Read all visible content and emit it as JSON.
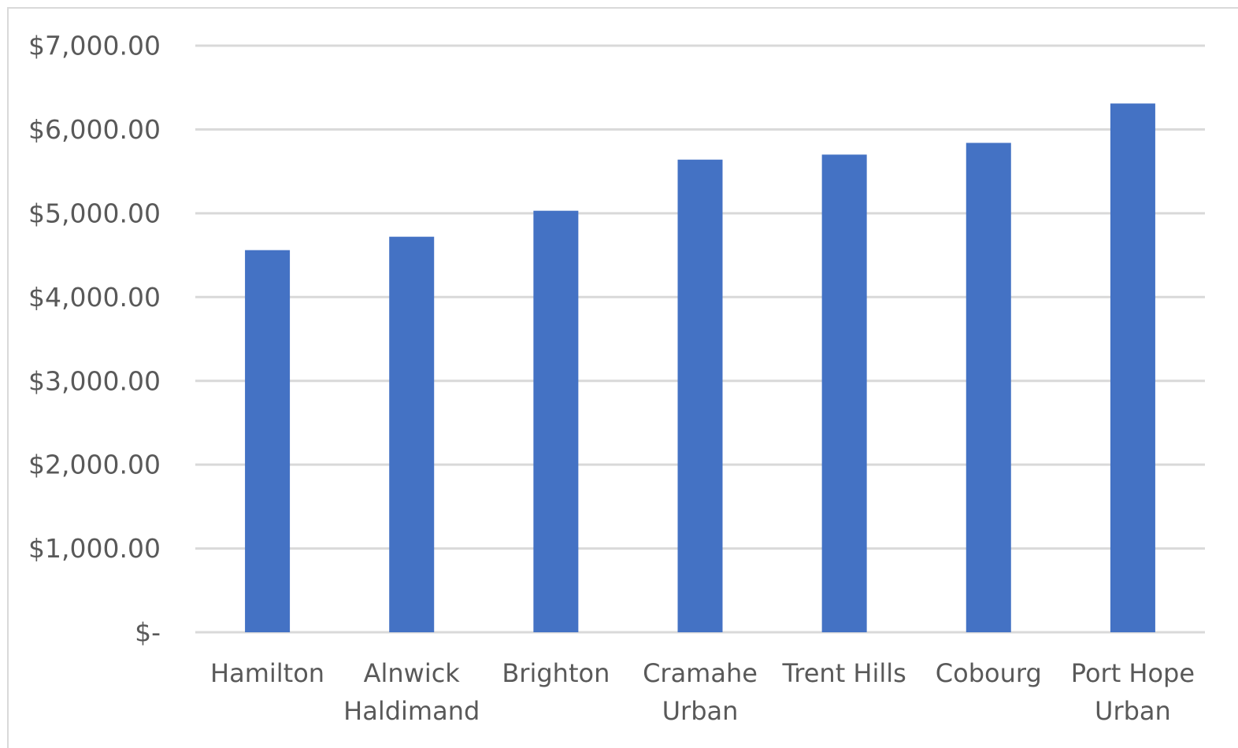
{
  "chart_data": {
    "type": "bar",
    "title": "",
    "xlabel": "",
    "ylabel": "",
    "categories": [
      [
        "Hamilton"
      ],
      [
        "Alnwick",
        "Haldimand"
      ],
      [
        "Brighton"
      ],
      [
        "Cramahe",
        "Urban"
      ],
      [
        "Trent Hills"
      ],
      [
        "Cobourg"
      ],
      [
        "Port Hope",
        "Urban"
      ]
    ],
    "values": [
      4560,
      4720,
      5030,
      5640,
      5700,
      5840,
      6310
    ],
    "ylim": [
      0,
      7000
    ],
    "y_ticks": [
      {
        "value": 0,
        "label": "$-"
      },
      {
        "value": 1000,
        "label": "$1,000.00"
      },
      {
        "value": 2000,
        "label": "$2,000.00"
      },
      {
        "value": 3000,
        "label": "$3,000.00"
      },
      {
        "value": 4000,
        "label": "$4,000.00"
      },
      {
        "value": 5000,
        "label": "$5,000.00"
      },
      {
        "value": 6000,
        "label": "$6,000.00"
      },
      {
        "value": 7000,
        "label": "$7,000.00"
      }
    ],
    "grid": true,
    "legend": "none",
    "colors": {
      "bar": "#4472C4",
      "grid": "#D9D9D9",
      "text": "#595959",
      "border": "#D9D9D9"
    }
  }
}
